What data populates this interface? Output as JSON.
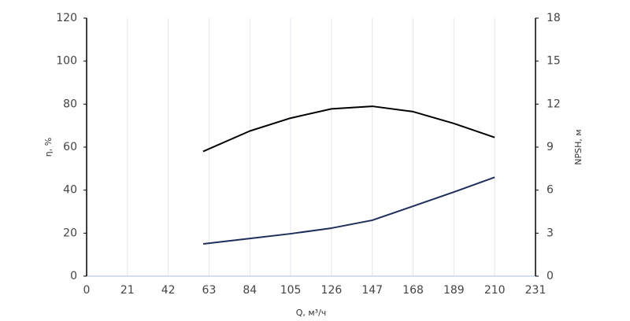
{
  "chart_data": {
    "type": "line",
    "x_label": "Q, м³/ч",
    "y_label": "η, %",
    "y2_label": "NPSH, м",
    "x": [
      60,
      84,
      105,
      126,
      147,
      168,
      189,
      210
    ],
    "series": [
      {
        "name": "η",
        "color": "#000000",
        "values": [
          58,
          67.5,
          73.5,
          77.8,
          79,
          76.5,
          71,
          64.5
        ]
      },
      {
        "name": "NPSH",
        "color": "#1f2d5a",
        "axis": "y2",
        "values": [
          2.25,
          2.63,
          2.96,
          3.35,
          3.9,
          4.88,
          5.87,
          6.9
        ]
      }
    ],
    "xlim": [
      0,
      231
    ],
    "xticks": [
      0,
      21,
      42,
      63,
      84,
      105,
      126,
      147,
      168,
      189,
      210,
      231
    ],
    "ylim": [
      0,
      120
    ],
    "yticks": [
      0,
      20,
      40,
      60,
      80,
      100,
      120
    ],
    "y2lim": [
      0,
      18
    ],
    "y2ticks": [
      0,
      3,
      6,
      9,
      12,
      15,
      18
    ],
    "grid": true
  }
}
